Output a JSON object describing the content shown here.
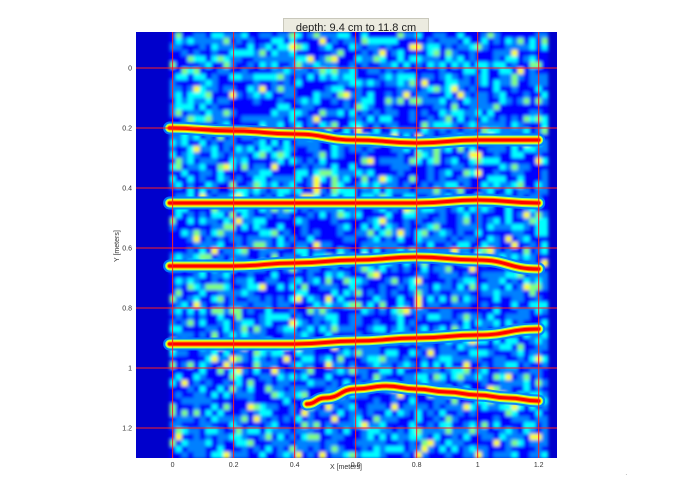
{
  "chart_data": {
    "type": "heatmap",
    "title": "depth:  9.4 cm  to  11.8 cm",
    "xlabel": "X [meters]",
    "ylabel": "Y [meters]",
    "xticks": [
      "0",
      "0.2",
      "0.4",
      "0.6",
      "0.8",
      "1",
      "1.2"
    ],
    "yticks": [
      "0",
      "0.2",
      "0.4",
      "0.6",
      "0.8",
      "1",
      "1.2"
    ],
    "xlim": [
      -0.12,
      1.26
    ],
    "ylim": [
      -0.12,
      1.3
    ],
    "y_inverted": true,
    "grid": true,
    "grid_color": "#ff2020",
    "colormap": [
      "#00008f",
      "#0000ff",
      "#0080ff",
      "#00ffff",
      "#80ff80",
      "#ffff00",
      "#ff8000",
      "#ff0000",
      "#800000"
    ],
    "background_color": "#0000cc",
    "reflectors": [
      {
        "x": [
          -0.01,
          0.2,
          0.4,
          0.6,
          0.8,
          1.0,
          1.2
        ],
        "y": [
          0.2,
          0.21,
          0.22,
          0.24,
          0.25,
          0.24,
          0.24
        ]
      },
      {
        "x": [
          -0.01,
          0.2,
          0.4,
          0.6,
          0.8,
          1.0,
          1.2
        ],
        "y": [
          0.45,
          0.45,
          0.45,
          0.45,
          0.45,
          0.44,
          0.45
        ]
      },
      {
        "x": [
          -0.01,
          0.2,
          0.4,
          0.6,
          0.8,
          1.0,
          1.2
        ],
        "y": [
          0.66,
          0.66,
          0.65,
          0.64,
          0.63,
          0.64,
          0.67
        ]
      },
      {
        "x": [
          -0.01,
          0.2,
          0.4,
          0.6,
          0.8,
          1.0,
          1.2
        ],
        "y": [
          0.92,
          0.92,
          0.92,
          0.91,
          0.9,
          0.89,
          0.87
        ]
      },
      {
        "x": [
          0.44,
          0.5,
          0.6,
          0.7,
          0.8,
          0.9,
          1.0,
          1.1,
          1.2
        ],
        "y": [
          1.12,
          1.1,
          1.07,
          1.06,
          1.07,
          1.08,
          1.09,
          1.1,
          1.11
        ]
      }
    ]
  }
}
